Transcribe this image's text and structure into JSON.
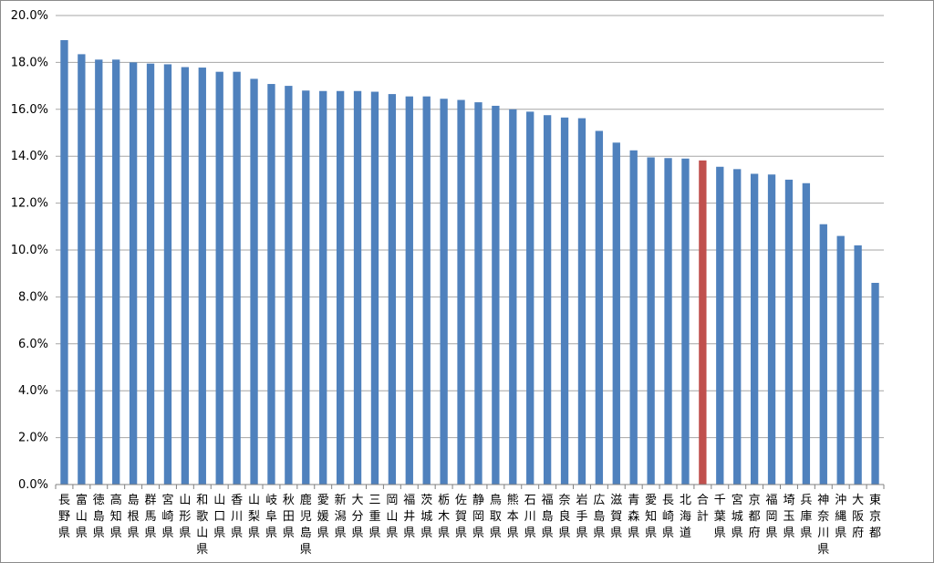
{
  "chart_data": {
    "type": "bar",
    "title": "",
    "xlabel": "",
    "ylabel": "",
    "ylim": [
      0,
      20
    ],
    "y_tick_format": "percent_1dp",
    "y_ticks": [
      "0.0%",
      "2.0%",
      "4.0%",
      "6.0%",
      "8.0%",
      "10.0%",
      "12.0%",
      "14.0%",
      "16.0%",
      "18.0%",
      "20.0%"
    ],
    "grid": true,
    "legend": "none",
    "categories": [
      "長野県",
      "富山県",
      "徳島県",
      "高知県",
      "島根県",
      "群馬県",
      "宮崎県",
      "山形県",
      "和歌山県",
      "山口県",
      "香川県",
      "山梨県",
      "岐阜県",
      "秋田県",
      "鹿児島県",
      "愛媛県",
      "新潟県",
      "大分県",
      "三重県",
      "岡山県",
      "福井県",
      "茨城県",
      "栃木県",
      "佐賀県",
      "静岡県",
      "鳥取県",
      "熊本県",
      "石川県",
      "福島県",
      "奈良県",
      "岩手県",
      "広島県",
      "滋賀県",
      "青森県",
      "愛知県",
      "長崎県",
      "北海道",
      "合計",
      "千葉県",
      "宮城県",
      "京都府",
      "福岡県",
      "埼玉県",
      "兵庫県",
      "神奈川県",
      "沖縄県",
      "大阪府",
      "東京都"
    ],
    "values": [
      18.95,
      18.35,
      18.12,
      18.12,
      18.0,
      17.95,
      17.92,
      17.8,
      17.78,
      17.6,
      17.6,
      17.3,
      17.08,
      17.0,
      16.8,
      16.78,
      16.78,
      16.78,
      16.75,
      16.65,
      16.55,
      16.55,
      16.45,
      16.4,
      16.3,
      16.15,
      16.0,
      15.9,
      15.75,
      15.65,
      15.62,
      15.08,
      14.58,
      14.25,
      13.95,
      13.92,
      13.9,
      13.82,
      13.55,
      13.45,
      13.25,
      13.22,
      13.0,
      12.85,
      11.1,
      10.6,
      10.2,
      8.6
    ],
    "colors": {
      "bar": "#4f81bd",
      "highlight": "#c0504d",
      "grid": "#a6a6a6",
      "axis": "#808080"
    },
    "highlight_category": "合計"
  }
}
